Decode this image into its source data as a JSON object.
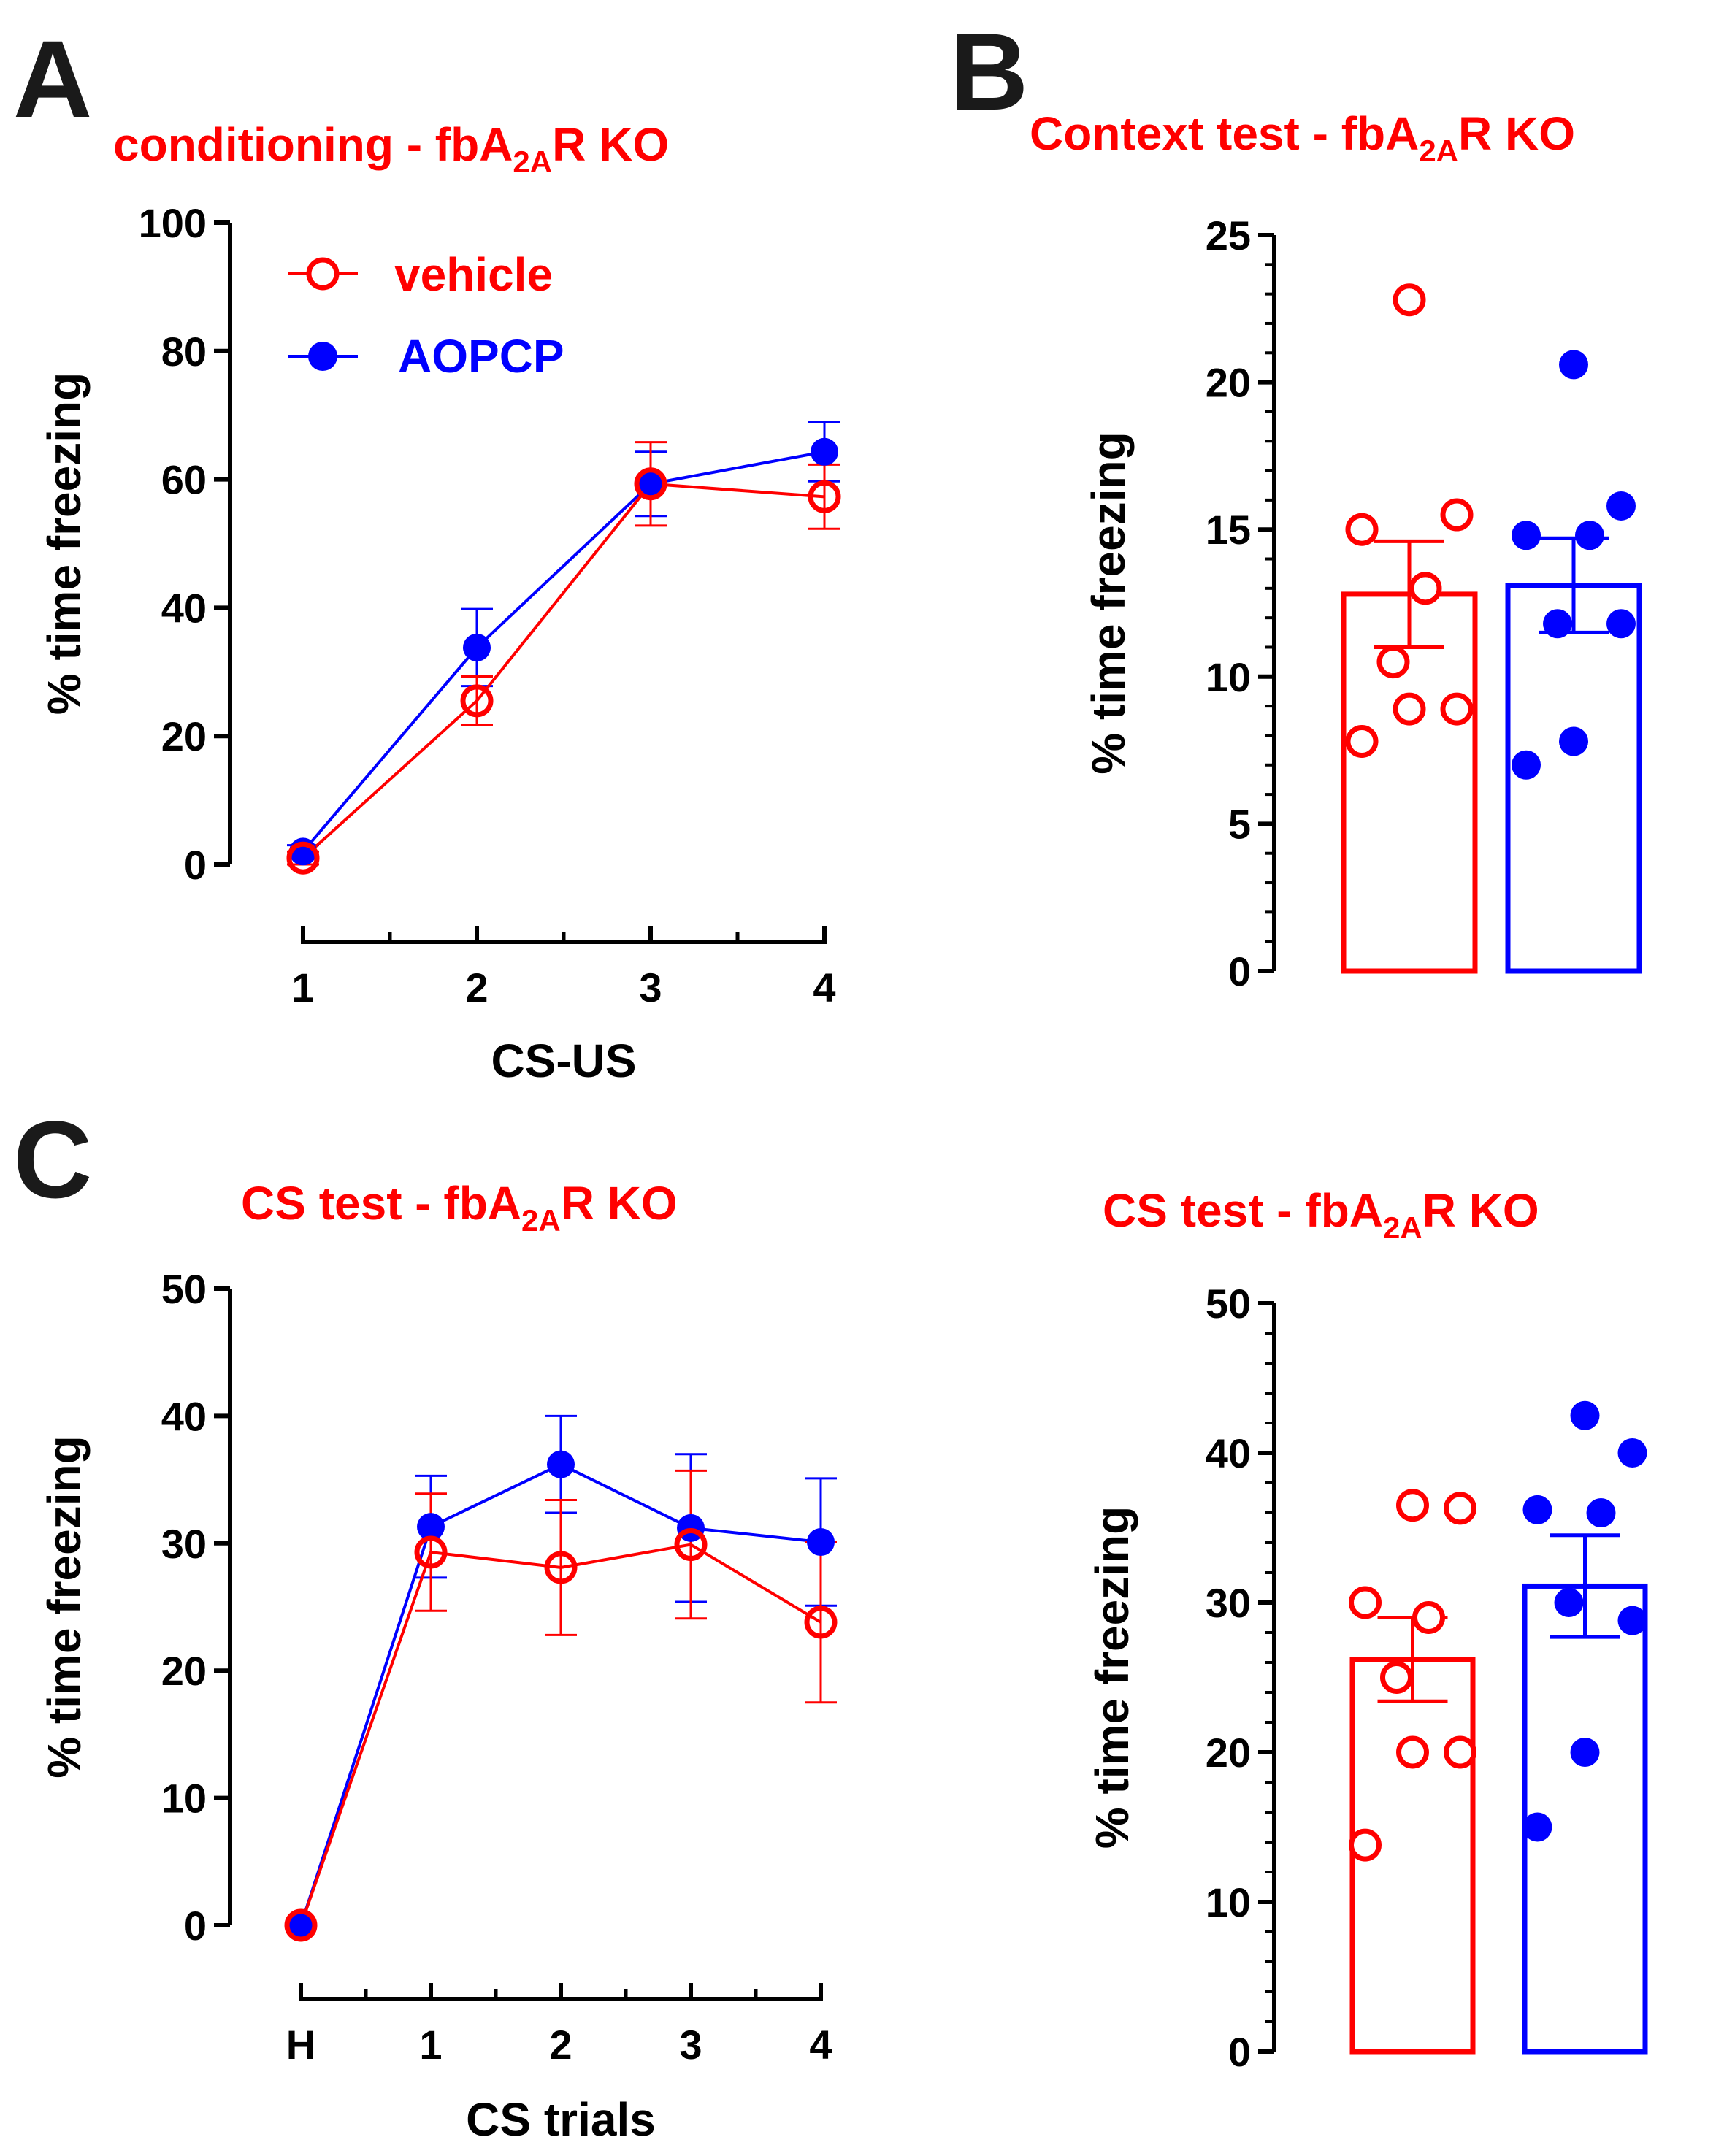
{
  "colors": {
    "vehicle": "#ff0000",
    "aopcp": "#0000ff",
    "axis": "#000000",
    "panel_letter": "#1a1a1a"
  },
  "panel_letters": {
    "a": "A",
    "b": "B",
    "c": "C"
  },
  "legend": {
    "vehicle": "vehicle",
    "aopcp": "AOPCP"
  },
  "titles": {
    "a": {
      "pre": "conditioning - fbA",
      "sub": "2A",
      "post": "R KO"
    },
    "b": {
      "pre": "Context test - fbA",
      "sub": "2A",
      "post": "R KO"
    },
    "c1": {
      "pre": "CS test - fbA",
      "sub": "2A",
      "post": "R KO"
    },
    "c2": {
      "pre": "CS test - fbA",
      "sub": "2A",
      "post": "R KO"
    }
  },
  "chart_data": [
    {
      "id": "a",
      "type": "line",
      "xlabel": "CS-US",
      "ylabel": "% time freezing",
      "categories": [
        "1",
        "2",
        "3",
        "4"
      ],
      "ylim": [
        0,
        100
      ],
      "yticks": [
        0,
        20,
        40,
        60,
        80,
        100
      ],
      "series": [
        {
          "name": "vehicle",
          "key": "vehicle",
          "filled": false,
          "values": [
            1,
            25.5,
            59.3,
            57.3
          ],
          "sem": [
            1,
            3.8,
            6.5,
            5
          ]
        },
        {
          "name": "AOPCP",
          "key": "aopcp",
          "filled": true,
          "values": [
            2,
            33.8,
            59.3,
            64.3
          ],
          "sem": [
            1,
            6,
            5,
            4.6
          ]
        }
      ]
    },
    {
      "id": "b",
      "type": "bar",
      "ylabel": "% time freezing",
      "ylim": [
        0,
        25
      ],
      "yticks": [
        0,
        5,
        10,
        15,
        20,
        25
      ],
      "groups": [
        {
          "key": "vehicle",
          "filled": false,
          "mean": 12.8,
          "sem": 1.8,
          "points": [
            7.8,
            8.9,
            8.9,
            10.5,
            13,
            15,
            15.5,
            22.8
          ]
        },
        {
          "key": "aopcp",
          "filled": true,
          "mean": 13.1,
          "sem": 1.6,
          "points": [
            7,
            7.8,
            11.8,
            11.8,
            14.8,
            14.8,
            15.8,
            20.6
          ]
        }
      ]
    },
    {
      "id": "c1",
      "type": "line",
      "xlabel": "CS trials",
      "ylabel": "% time freezing",
      "categories": [
        "H",
        "1",
        "2",
        "3",
        "4"
      ],
      "ylim": [
        0,
        50
      ],
      "yticks": [
        0,
        10,
        20,
        30,
        40,
        50
      ],
      "series": [
        {
          "name": "vehicle",
          "key": "vehicle",
          "filled": false,
          "values": [
            0,
            29.3,
            28.1,
            29.9,
            23.8
          ],
          "sem": [
            0,
            4.6,
            5.3,
            5.8,
            6.3
          ]
        },
        {
          "name": "AOPCP",
          "key": "aopcp",
          "filled": true,
          "values": [
            0,
            31.3,
            36.2,
            31.2,
            30.1
          ],
          "sem": [
            0,
            4,
            3.8,
            5.8,
            5
          ]
        }
      ]
    },
    {
      "id": "c2",
      "type": "bar",
      "ylabel": "% time freezing",
      "ylim": [
        0,
        50
      ],
      "yticks": [
        0,
        10,
        20,
        30,
        40,
        50
      ],
      "groups": [
        {
          "key": "vehicle",
          "filled": false,
          "mean": 26.2,
          "sem": 2.8,
          "points": [
            13.8,
            20,
            20,
            25,
            29,
            30,
            36.3,
            36.5
          ]
        },
        {
          "key": "aopcp",
          "filled": true,
          "mean": 31.1,
          "sem": 3.4,
          "points": [
            15,
            20,
            28.8,
            30,
            36,
            36.2,
            40,
            42.5
          ]
        }
      ]
    }
  ]
}
